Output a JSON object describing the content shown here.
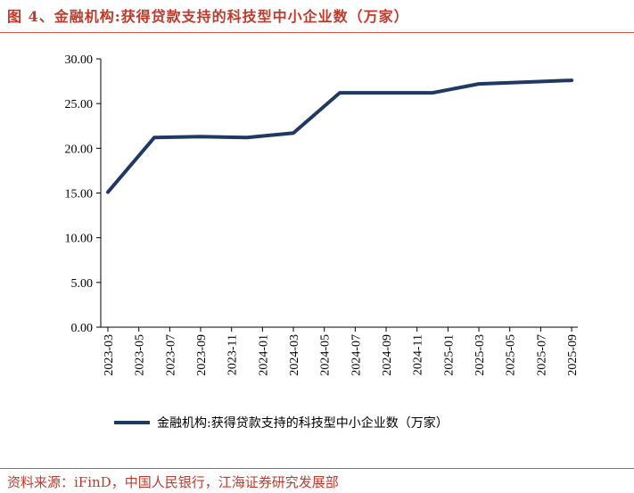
{
  "header": {
    "figure_label": "图 4、",
    "title": "金融机构:获得贷款支持的科技型中小企业数（万家）"
  },
  "footer": {
    "source": "资料来源：iFinD，中国人民银行，江海证券研究发展部"
  },
  "chart_data": {
    "type": "line",
    "title": "金融机构:获得贷款支持的科技型中小企业数（万家）",
    "xlabel": "",
    "ylabel": "",
    "ylim": [
      0,
      30
    ],
    "y_ticks": [
      "0.00",
      "5.00",
      "10.00",
      "15.00",
      "20.00",
      "25.00",
      "30.00"
    ],
    "x_ticks": [
      "2023-03",
      "2023-05",
      "2023-07",
      "2023-09",
      "2023-11",
      "2024-01",
      "2024-03",
      "2024-05",
      "2024-07",
      "2024-09",
      "2024-11",
      "2025-01",
      "2025-03",
      "2025-05",
      "2025-07",
      "2025-09"
    ],
    "grid": false,
    "legend": "bottom",
    "series": [
      {
        "name": "金融机构:获得贷款支持的科技型中小企业数（万家）",
        "color": "#1f3864",
        "x": [
          "2023-03",
          "2023-06",
          "2023-09",
          "2023-12",
          "2024-03",
          "2024-06",
          "2024-09",
          "2024-12",
          "2025-03",
          "2025-06",
          "2025-09"
        ],
        "values": [
          15.1,
          21.2,
          21.3,
          21.2,
          21.7,
          26.2,
          26.2,
          26.2,
          27.2,
          27.4,
          27.6
        ]
      }
    ]
  }
}
